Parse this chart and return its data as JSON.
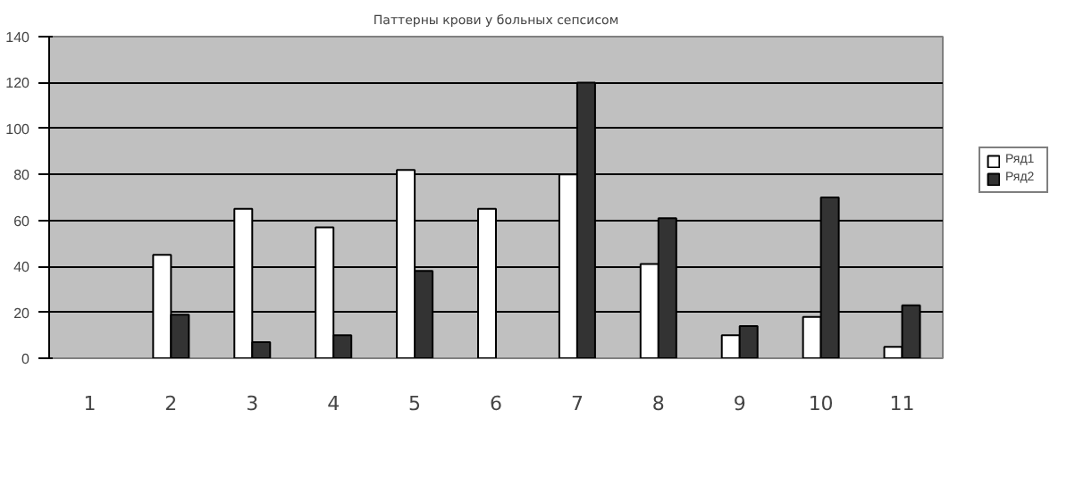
{
  "chart_data": {
    "type": "bar",
    "title": "Паттерны крови у больных сепсисом",
    "categories": [
      "1",
      "2",
      "3",
      "4",
      "5",
      "6",
      "7",
      "8",
      "9",
      "10",
      "11"
    ],
    "series": [
      {
        "name": "Ряд1",
        "color": "#ffffff",
        "values": [
          null,
          45,
          65,
          57,
          82,
          65,
          80,
          41,
          10,
          18,
          5
        ]
      },
      {
        "name": "Ряд2",
        "color": "#333333",
        "values": [
          null,
          19,
          7,
          10,
          38,
          null,
          120,
          61,
          14,
          70,
          23
        ]
      }
    ],
    "ylim": [
      0,
      140
    ],
    "yticks": [
      0,
      20,
      40,
      60,
      80,
      100,
      120,
      140
    ],
    "grid": "y",
    "legend": "right"
  }
}
